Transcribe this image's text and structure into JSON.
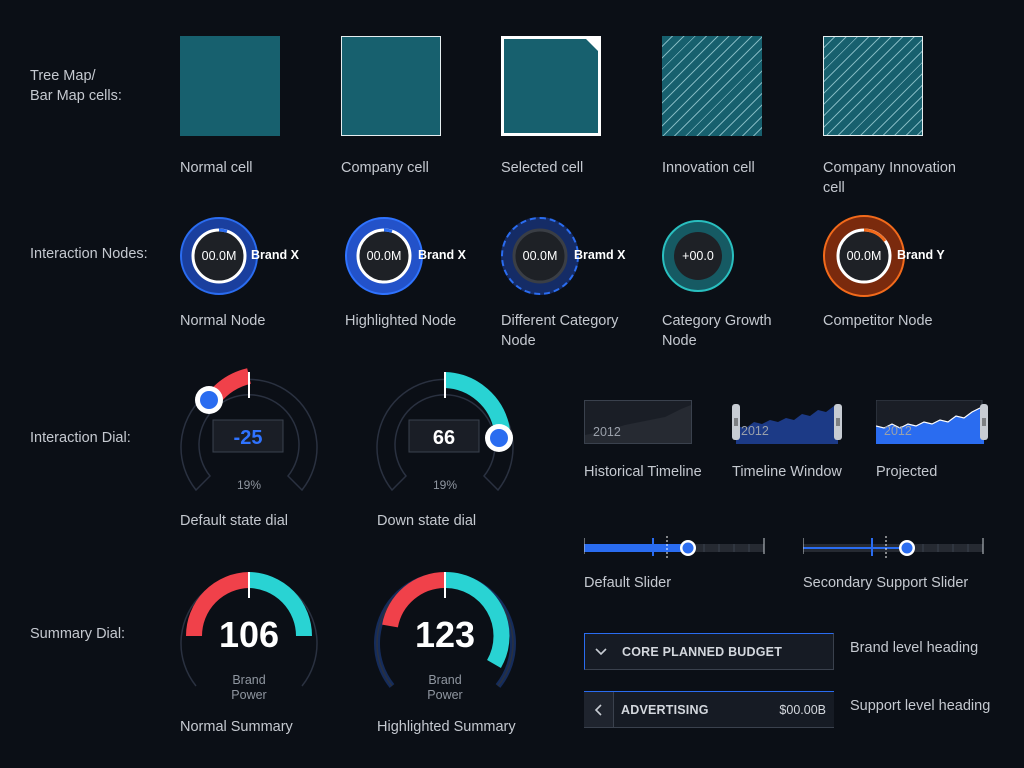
{
  "rows": {
    "tree_map": "Tree Map/\nBar Map cells:",
    "interaction_nodes": "Interaction Nodes:",
    "interaction_dial": "Interaction Dial:",
    "summary_dial": "Summary Dial:"
  },
  "cells": [
    {
      "caption": "Normal cell"
    },
    {
      "caption": "Company cell"
    },
    {
      "caption": "Selected cell"
    },
    {
      "caption": "Innovation cell"
    },
    {
      "caption": "Company Innovation\ncell"
    }
  ],
  "nodes": [
    {
      "value": "00.0M",
      "name": "Brand X",
      "caption": "Normal Node"
    },
    {
      "value": "00.0M",
      "name": "Brand X",
      "caption": "Highlighted Node"
    },
    {
      "value": "00.0M",
      "name": "Bramd X",
      "caption": "Different Category\nNode"
    },
    {
      "value": "+00.0",
      "name": "",
      "caption": "Category Growth\nNode"
    },
    {
      "value": "00.0M",
      "name": "Brand Y",
      "caption": "Competitor Node"
    }
  ],
  "dials": [
    {
      "value": "-25",
      "percent": "19%",
      "caption": "Default state dial"
    },
    {
      "value": "66",
      "percent": "19%",
      "caption": "Down state dial"
    }
  ],
  "summary": [
    {
      "value": "106",
      "label": "Brand\nPower",
      "caption": "Normal Summary"
    },
    {
      "value": "123",
      "label": "Brand\nPower",
      "caption": "Highlighted Summary"
    }
  ],
  "timelines": [
    {
      "year": "2012",
      "caption": "Historical Timeline"
    },
    {
      "year": "2012",
      "caption": "Timeline Window"
    },
    {
      "year": "2012",
      "caption": "Projected"
    }
  ],
  "sliders": [
    {
      "caption": "Default Slider"
    },
    {
      "caption": "Secondary Support Slider"
    }
  ],
  "headings": {
    "brand": {
      "title": "CORE PLANNED BUDGET",
      "caption": "Brand level heading",
      "icon": "chevron-down-icon"
    },
    "support": {
      "title": "ADVERTISING",
      "amount": "$00.00B",
      "caption": "Support level heading",
      "icon": "chevron-left-icon"
    }
  },
  "colors": {
    "teal_cell": "#17606e",
    "blue_accent": "#2a6cf0",
    "red_accent": "#f0414a",
    "cyan_accent": "#29d3d3",
    "orange_accent": "#f26a1b",
    "background": "#0b0f16"
  }
}
